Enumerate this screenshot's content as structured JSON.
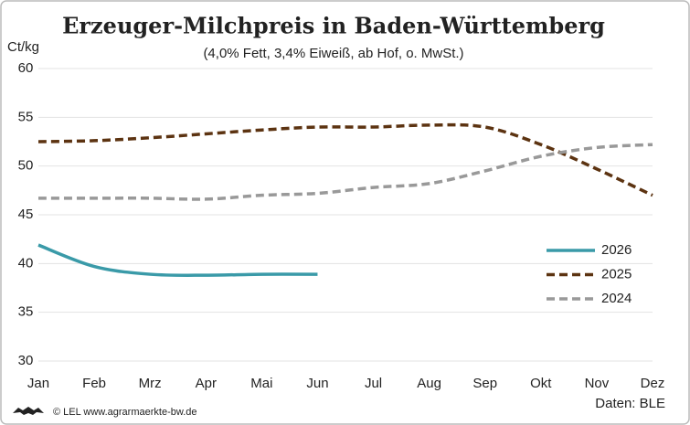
{
  "chart_data": {
    "type": "line",
    "title": "Erzeuger-Milchpreis in Baden-Württemberg",
    "subtitle": "(4,0% Fett, 3,4% Eiweiß, ab Hof, o. MwSt.)",
    "y_label": "Ct/kg",
    "source": "Daten: BLE",
    "credit": "© LEL www.agrarmaerkte-bw.de",
    "categories": [
      "Jan",
      "Feb",
      "Mrz",
      "Apr",
      "Mai",
      "Jun",
      "Jul",
      "Aug",
      "Sep",
      "Okt",
      "Nov",
      "Dez"
    ],
    "series": [
      {
        "name": "2026",
        "color": "#3a9aa8",
        "dashed": false,
        "values": [
          41.9,
          39.7,
          38.9,
          38.8,
          38.9,
          38.9,
          null,
          null,
          null,
          null,
          null,
          null
        ]
      },
      {
        "name": "2025",
        "color": "#5c3311",
        "dashed": true,
        "values": [
          52.5,
          52.6,
          52.9,
          53.3,
          53.7,
          54.0,
          54.0,
          54.2,
          54.0,
          52.2,
          49.7,
          47.0
        ]
      },
      {
        "name": "2024",
        "color": "#999999",
        "dashed": true,
        "values": [
          46.7,
          46.7,
          46.7,
          46.6,
          47.0,
          47.2,
          47.8,
          48.2,
          49.5,
          51.0,
          51.9,
          52.2
        ]
      }
    ],
    "ylim": [
      30,
      60
    ],
    "yticks": [
      30,
      35,
      40,
      45,
      50,
      55,
      60
    ],
    "grid": true,
    "legend": "right"
  }
}
